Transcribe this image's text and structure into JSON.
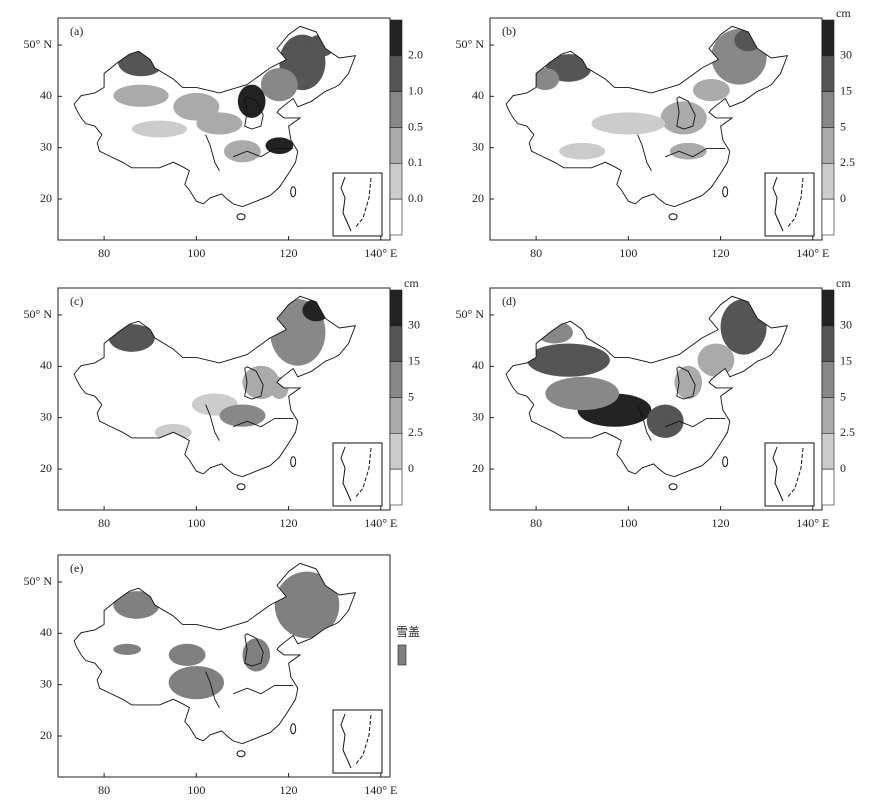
{
  "panels": [
    {
      "label": "(a)",
      "yticks": [
        "50° N",
        "40",
        "30",
        "20"
      ],
      "xticks": [
        "80",
        "100",
        "120",
        "140° E"
      ],
      "colorbar": {
        "ticks": [
          "2.0",
          "1.0",
          "0.5",
          "0.1",
          "0.0"
        ]
      }
    },
    {
      "label": "(b)",
      "yticks": [
        "50° N",
        "40",
        "30",
        "20"
      ],
      "xticks": [
        "80",
        "100",
        "120",
        "140° E"
      ],
      "colorbar": {
        "unit": "cm",
        "ticks": [
          "30",
          "15",
          "5",
          "2.5",
          "0"
        ]
      }
    },
    {
      "label": "(c)",
      "yticks": [
        "50° N",
        "40",
        "30",
        "20"
      ],
      "xticks": [
        "80",
        "100",
        "120",
        "140° E"
      ],
      "colorbar": {
        "unit": "cm",
        "ticks": [
          "30",
          "15",
          "5",
          "2.5",
          "0"
        ]
      }
    },
    {
      "label": "(d)",
      "yticks": [
        "50° N",
        "40",
        "30",
        "20"
      ],
      "xticks": [
        "80",
        "100",
        "120",
        "140° E"
      ],
      "colorbar": {
        "unit": "cm",
        "ticks": [
          "30",
          "15",
          "5",
          "2.5",
          "0"
        ]
      }
    },
    {
      "label": "(e)",
      "yticks": [
        "50° N",
        "40",
        "30",
        "20"
      ],
      "xticks": [
        "80",
        "100",
        "120",
        "140° E"
      ],
      "legend": {
        "label": "雪盖"
      }
    }
  ]
}
